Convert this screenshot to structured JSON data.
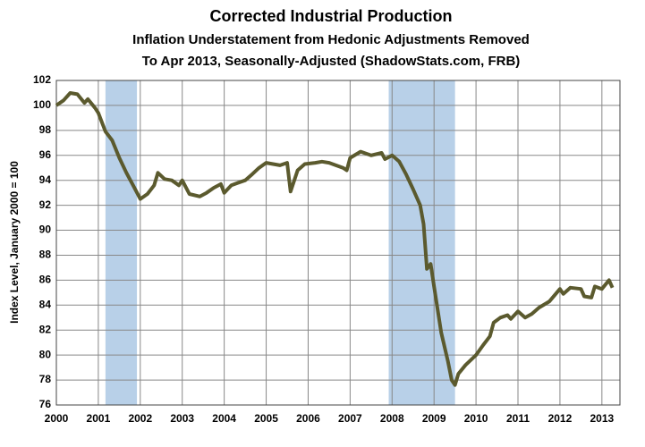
{
  "chart_data": {
    "type": "line",
    "title": "Corrected Industrial Production",
    "subtitle": "Inflation Understatement from Hedonic Adjustments Removed",
    "subtitle2": "To Apr 2013, Seasonally-Adjusted (ShadowStats.com, FRB)",
    "y_label": "Index Level, January 2000 = 100",
    "x": [
      2000.0,
      2000.17,
      2000.33,
      2000.5,
      2000.67,
      2000.75,
      2000.92,
      2001.0,
      2001.17,
      2001.33,
      2001.5,
      2001.67,
      2001.83,
      2002.0,
      2002.17,
      2002.33,
      2002.42,
      2002.58,
      2002.75,
      2002.92,
      2003.0,
      2003.17,
      2003.42,
      2003.58,
      2003.75,
      2003.92,
      2004.0,
      2004.17,
      2004.33,
      2004.5,
      2004.67,
      2004.83,
      2005.0,
      2005.33,
      2005.5,
      2005.58,
      2005.75,
      2005.92,
      2006.17,
      2006.33,
      2006.5,
      2006.83,
      2006.92,
      2007.0,
      2007.25,
      2007.5,
      2007.75,
      2007.83,
      2008.0,
      2008.17,
      2008.33,
      2008.5,
      2008.67,
      2008.75,
      2008.83,
      2008.92,
      2009.0,
      2009.17,
      2009.33,
      2009.42,
      2009.5,
      2009.58,
      2009.75,
      2010.0,
      2010.17,
      2010.33,
      2010.42,
      2010.58,
      2010.75,
      2010.83,
      2011.0,
      2011.17,
      2011.33,
      2011.5,
      2011.75,
      2012.0,
      2012.08,
      2012.25,
      2012.5,
      2012.58,
      2012.75,
      2012.83,
      2013.0,
      2013.17,
      2013.25
    ],
    "series": [
      {
        "name": "Corrected Industrial Production",
        "color": "#5b5a2e",
        "values": [
          100.0,
          100.4,
          101.0,
          100.9,
          100.2,
          100.5,
          99.8,
          99.4,
          97.9,
          97.2,
          95.8,
          94.6,
          93.6,
          92.5,
          92.9,
          93.6,
          94.6,
          94.1,
          94.0,
          93.6,
          94.0,
          92.9,
          92.7,
          93.0,
          93.4,
          93.7,
          93.0,
          93.6,
          93.8,
          94.0,
          94.5,
          95.0,
          95.4,
          95.2,
          95.4,
          93.1,
          94.8,
          95.3,
          95.4,
          95.5,
          95.4,
          95.0,
          94.8,
          95.8,
          96.3,
          96.0,
          96.2,
          95.7,
          96.0,
          95.5,
          94.5,
          93.3,
          92.0,
          90.5,
          86.9,
          87.3,
          85.5,
          81.8,
          79.5,
          78.0,
          77.6,
          78.5,
          79.2,
          80.0,
          80.8,
          81.5,
          82.6,
          83.0,
          83.2,
          82.9,
          83.5,
          83.0,
          83.3,
          83.8,
          84.3,
          85.3,
          84.9,
          85.4,
          85.3,
          84.7,
          84.6,
          85.5,
          85.3,
          86.0,
          85.4
        ]
      }
    ],
    "recessions": [
      [
        2001.17,
        2001.92
      ],
      [
        2007.92,
        2009.5
      ]
    ],
    "recession_color": "#b8d0e8",
    "xlim": [
      2000,
      2013.43
    ],
    "xticks": [
      2000,
      2001,
      2002,
      2003,
      2004,
      2005,
      2006,
      2007,
      2008,
      2009,
      2010,
      2011,
      2012,
      2013
    ],
    "ylim": [
      76,
      102
    ],
    "yticks": [
      76,
      78,
      80,
      82,
      84,
      86,
      88,
      90,
      92,
      94,
      96,
      98,
      100,
      102
    ],
    "grid": true
  }
}
